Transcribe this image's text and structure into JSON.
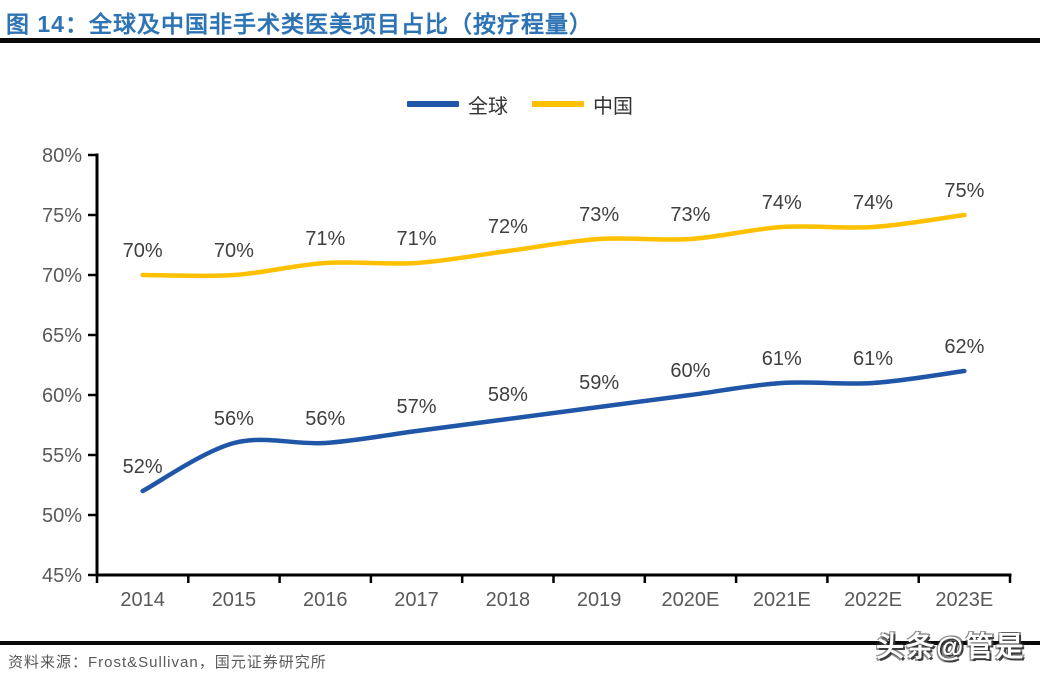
{
  "figure": {
    "title": "图 14：全球及中国非手术类医美项目占比（按疗程量）",
    "source": "资料来源：Frost&Sullivan，国元证券研究所",
    "watermark": "头条@管是"
  },
  "legend": {
    "items": [
      {
        "label": "全球"
      },
      {
        "label": "中国"
      }
    ]
  },
  "colors": {
    "title": "#2E74B5",
    "axis": "#000000",
    "tick_label": "#595959",
    "data_label": "#3F3F3F",
    "global_line": "#1F56A8",
    "china_line": "#FFC000",
    "source_text": "#595959"
  },
  "chart_data": {
    "type": "line",
    "title": "全球及中国非手术类医美项目占比（按疗程量）",
    "categories": [
      "2014",
      "2015",
      "2016",
      "2017",
      "2018",
      "2019",
      "2020E",
      "2021E",
      "2022E",
      "2023E"
    ],
    "series": [
      {
        "name": "全球",
        "color": "#1F56A8",
        "values": [
          52,
          56,
          56,
          57,
          58,
          59,
          60,
          61,
          61,
          62
        ],
        "labels": [
          "52%",
          "56%",
          "56%",
          "57%",
          "58%",
          "59%",
          "60%",
          "61%",
          "61%",
          "62%"
        ]
      },
      {
        "name": "中国",
        "color": "#FFC000",
        "values": [
          70,
          70,
          71,
          71,
          72,
          73,
          73,
          74,
          74,
          75
        ],
        "labels": [
          "70%",
          "70%",
          "71%",
          "71%",
          "72%",
          "73%",
          "73%",
          "74%",
          "74%",
          "75%"
        ]
      }
    ],
    "xlabel": "",
    "ylabel": "",
    "ylim": [
      45,
      80
    ],
    "ytick_step": 5,
    "ytick_labels": [
      "45%",
      "50%",
      "55%",
      "60%",
      "65%",
      "70%",
      "75%",
      "80%"
    ],
    "grid": false,
    "smooth": true,
    "data_labels": true,
    "legend_position": "top-center"
  }
}
